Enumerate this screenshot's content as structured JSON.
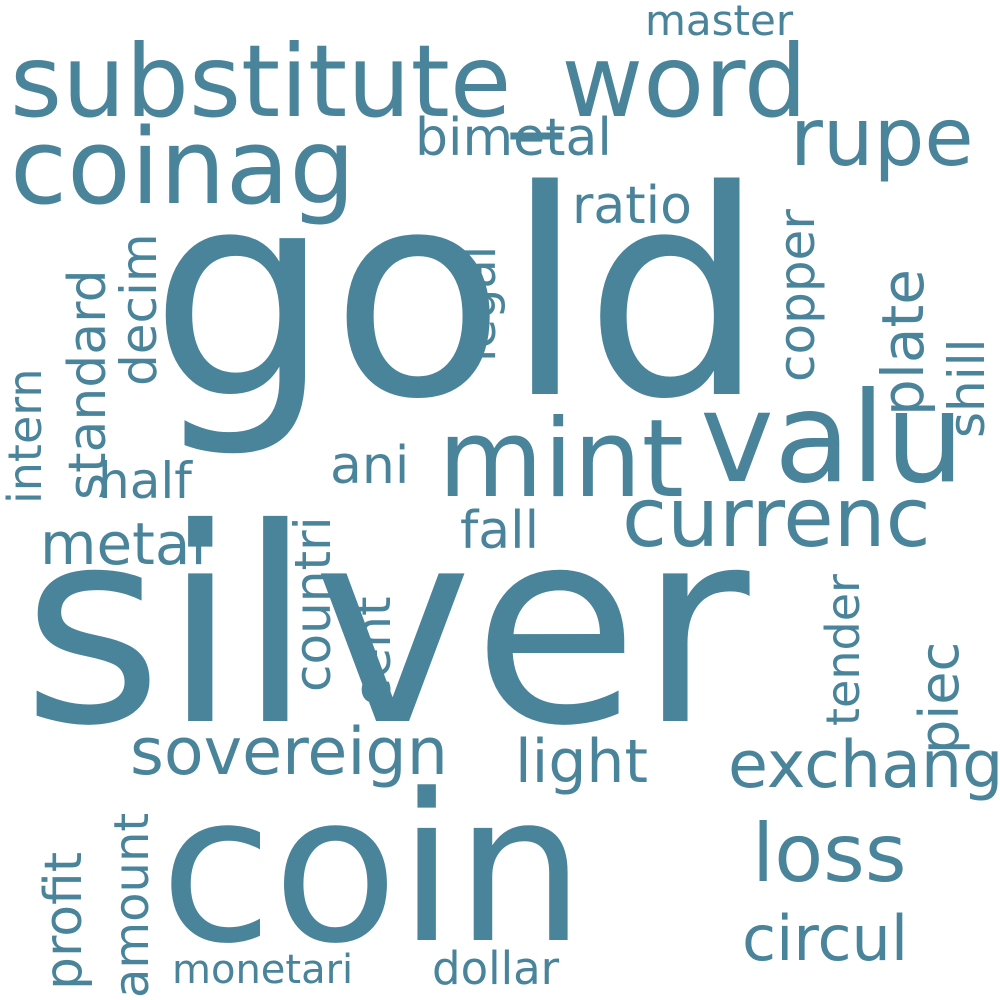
{
  "color": "#4a849b",
  "background": "#ffffff",
  "words": {
    "silver": "silver",
    "gold": "gold",
    "coin": "coin",
    "substitute_word": "substitute_word",
    "coinag": "coinag",
    "mint": "mint",
    "valu": "valu",
    "currenc": "currenc",
    "rupe": "rupe",
    "sovereign": "sovereign",
    "exchang": "exchang",
    "loss": "loss",
    "circul": "circul",
    "light": "light",
    "dollar": "dollar",
    "monetari": "monetari",
    "metal": "metal",
    "half": "half",
    "fall": "fall",
    "ani": "ani",
    "bimetal": "bimetal",
    "ratio": "ratio",
    "master": "master",
    "standard": "standard",
    "decim": "decim",
    "intern": "intern",
    "countri": "countri",
    "cent": "cent",
    "legal": "legal",
    "copper": "copper",
    "plate": "plate",
    "shill": "shill",
    "tender": "tender",
    "piec": "piec",
    "profit": "profit",
    "amount": "amount"
  }
}
